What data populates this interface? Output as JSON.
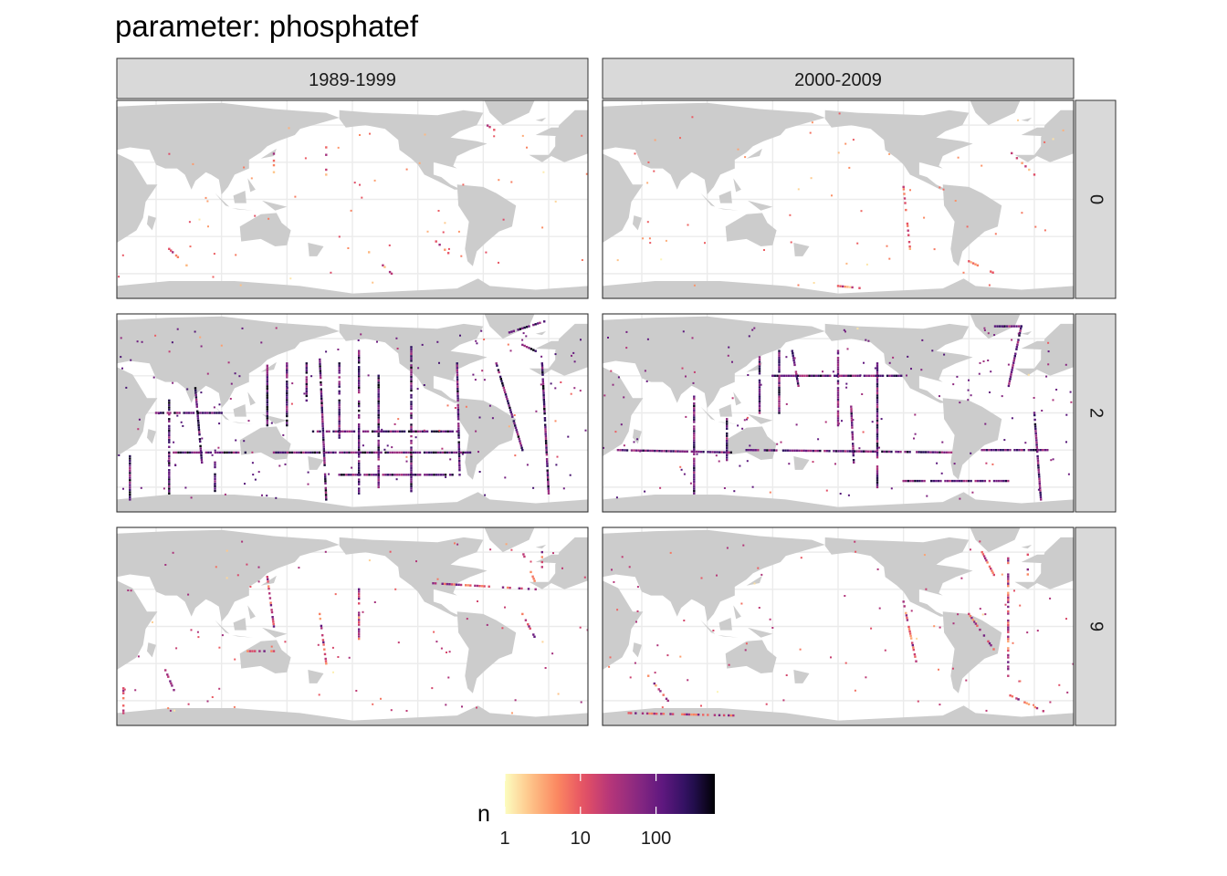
{
  "chart_data": {
    "type": "heatmap",
    "title": "parameter: phosphatef",
    "facet_columns": [
      "1989-1999",
      "2000-2009"
    ],
    "facet_rows": [
      "0",
      "2",
      "9"
    ],
    "xlim": [
      20,
      380
    ],
    "ylim": [
      -80,
      80
    ],
    "grid": true,
    "legend": {
      "title": "n",
      "scale": "log10",
      "range": [
        1,
        600
      ],
      "ticks": [
        1,
        10,
        100
      ],
      "tick_labels": [
        "1",
        "10",
        "100"
      ],
      "colors": [
        "#FCFDBF",
        "#FEC287",
        "#FB8861",
        "#E65164",
        "#B63679",
        "#8C2981",
        "#5F187F",
        "#2C115F",
        "#000004"
      ],
      "placement": "bottom"
    },
    "land_color": "#CCCCCC",
    "panels": [
      {
        "period": "1989-1999",
        "depth": "0",
        "level": "sparse",
        "max_n": 40,
        "tracks": [
          [
            [
              140,
              48
            ],
            [
              140,
              22
            ]
          ],
          [
            [
              180,
              42
            ],
            [
              180,
              20
            ]
          ],
          [
            [
              300,
              62
            ],
            [
              310,
              55
            ],
            [
              330,
              45
            ]
          ],
          [
            [
              210,
              -40
            ],
            [
              230,
              -60
            ]
          ],
          [
            [
              260,
              -30
            ],
            [
              280,
              -50
            ]
          ],
          [
            [
              60,
              -40
            ],
            [
              80,
              -60
            ]
          ]
        ]
      },
      {
        "period": "2000-2009",
        "depth": "0",
        "level": "sparse",
        "max_n": 30,
        "tracks": [
          [
            [
              250,
              10
            ],
            [
              255,
              -40
            ]
          ],
          [
            [
              330,
              40
            ],
            [
              350,
              20
            ]
          ],
          [
            [
              300,
              -50
            ],
            [
              320,
              -60
            ]
          ],
          [
            [
              200,
              -70
            ],
            [
              220,
              -72
            ]
          ]
        ]
      },
      {
        "period": "1989-1999",
        "depth": "2",
        "level": "dense",
        "max_n": 600,
        "tracks": [
          [
            [
              30,
              -35
            ],
            [
              30,
              -70
            ]
          ],
          [
            [
              60,
              10
            ],
            [
              60,
              -65
            ]
          ],
          [
            [
              80,
              20
            ],
            [
              85,
              -40
            ]
          ],
          [
            [
              95,
              -40
            ],
            [
              95,
              -65
            ]
          ],
          [
            [
              135,
              40
            ],
            [
              135,
              -10
            ]
          ],
          [
            [
              150,
              40
            ],
            [
              150,
              -10
            ]
          ],
          [
            [
              165,
              40
            ],
            [
              165,
              10
            ]
          ],
          [
            [
              175,
              45
            ],
            [
              180,
              -70
            ]
          ],
          [
            [
              190,
              40
            ],
            [
              190,
              -20
            ]
          ],
          [
            [
              205,
              50
            ],
            [
              205,
              -65
            ]
          ],
          [
            [
              220,
              30
            ],
            [
              220,
              -60
            ]
          ],
          [
            [
              245,
              55
            ],
            [
              245,
              -65
            ]
          ],
          [
            [
              280,
              40
            ],
            [
              282,
              -50
            ]
          ],
          [
            [
              310,
              40
            ],
            [
              330,
              -30
            ]
          ],
          [
            [
              345,
              40
            ],
            [
              350,
              -65
            ]
          ],
          [
            [
              50,
              0
            ],
            [
              100,
              0
            ]
          ],
          [
            [
              170,
              -15
            ],
            [
              280,
              -15
            ]
          ],
          [
            [
              60,
              -32
            ],
            [
              120,
              -32
            ]
          ],
          [
            [
              140,
              -32
            ],
            [
              290,
              -32
            ]
          ],
          [
            [
              190,
              -50
            ],
            [
              280,
              -50
            ]
          ],
          [
            [
              320,
              65
            ],
            [
              350,
              75
            ]
          ],
          [
            [
              330,
              55
            ],
            [
              340,
              50
            ]
          ]
        ]
      },
      {
        "period": "2000-2009",
        "depth": "2",
        "level": "dense",
        "max_n": 500,
        "tracks": [
          [
            [
              90,
              15
            ],
            [
              90,
              -65
            ]
          ],
          [
            [
              115,
              -5
            ],
            [
              115,
              -40
            ]
          ],
          [
            [
              140,
              45
            ],
            [
              140,
              0
            ]
          ],
          [
            [
              155,
              50
            ],
            [
              155,
              0
            ]
          ],
          [
            [
              165,
              50
            ],
            [
              170,
              20
            ]
          ],
          [
            [
              200,
              50
            ],
            [
              200,
              -10
            ]
          ],
          [
            [
              210,
              5
            ],
            [
              212,
              -40
            ]
          ],
          [
            [
              230,
              40
            ],
            [
              230,
              -60
            ]
          ],
          [
            [
              340,
              70
            ],
            [
              330,
              20
            ]
          ],
          [
            [
              350,
              0
            ],
            [
              355,
              -70
            ]
          ],
          [
            [
              30,
              -30
            ],
            [
              120,
              -32
            ]
          ],
          [
            [
              130,
              -30
            ],
            [
              290,
              -32
            ]
          ],
          [
            [
              150,
              30
            ],
            [
              250,
              30
            ]
          ],
          [
            [
              310,
              -30
            ],
            [
              360,
              -30
            ]
          ],
          [
            [
              250,
              -55
            ],
            [
              330,
              -55
            ]
          ],
          [
            [
              320,
              70
            ],
            [
              340,
              70
            ]
          ]
        ]
      },
      {
        "period": "1989-1999",
        "depth": "9",
        "level": "medium",
        "max_n": 120,
        "tracks": [
          [
            [
              25,
              -50
            ],
            [
              25,
              -70
            ]
          ],
          [
            [
              330,
              60
            ],
            [
              340,
              35
            ]
          ],
          [
            [
              345,
              60
            ],
            [
              345,
              40
            ]
          ],
          [
            [
              260,
              35
            ],
            [
              340,
              30
            ]
          ],
          [
            [
              330,
              10
            ],
            [
              340,
              -10
            ]
          ],
          [
            [
              135,
              40
            ],
            [
              140,
              0
            ]
          ],
          [
            [
              205,
              30
            ],
            [
              205,
              -10
            ]
          ],
          [
            [
              175,
              10
            ],
            [
              180,
              -30
            ]
          ],
          [
            [
              55,
              -30
            ],
            [
              65,
              -55
            ]
          ],
          [
            [
              120,
              -20
            ],
            [
              140,
              -20
            ]
          ]
        ]
      },
      {
        "period": "2000-2009",
        "depth": "9",
        "level": "medium",
        "max_n": 100,
        "tracks": [
          [
            [
              330,
              55
            ],
            [
              330,
              -40
            ]
          ],
          [
            [
              310,
              60
            ],
            [
              320,
              40
            ]
          ],
          [
            [
              345,
              60
            ],
            [
              345,
              40
            ]
          ],
          [
            [
              330,
              -55
            ],
            [
              360,
              -70
            ]
          ],
          [
            [
              40,
              -70
            ],
            [
              120,
              -72
            ]
          ],
          [
            [
              250,
              20
            ],
            [
              260,
              -30
            ]
          ],
          [
            [
              55,
              -40
            ],
            [
              70,
              -60
            ]
          ],
          [
            [
              300,
              10
            ],
            [
              320,
              -20
            ]
          ]
        ]
      }
    ]
  }
}
